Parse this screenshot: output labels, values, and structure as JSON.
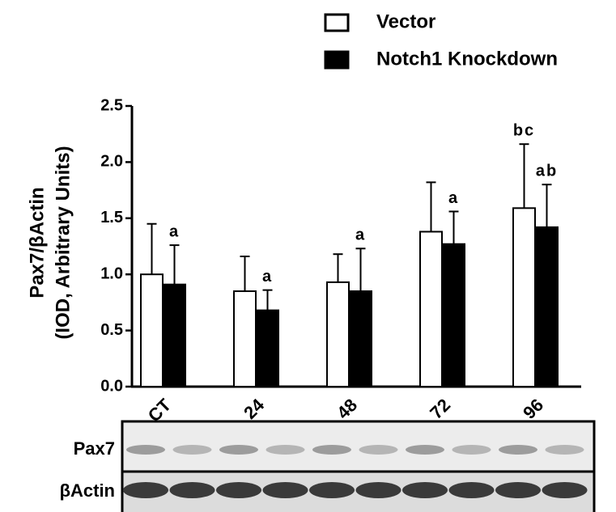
{
  "chart_data": {
    "type": "bar",
    "y_label": [
      "Pax7/βActin",
      "(IOD, Arbitrary Units)"
    ],
    "categories": [
      "CT",
      "24",
      "48",
      "72",
      "96"
    ],
    "series": [
      {
        "name": "Vector",
        "color": "#ffffff",
        "values": [
          1.0,
          0.85,
          0.93,
          1.38,
          1.59
        ],
        "errors": [
          0.45,
          0.31,
          0.25,
          0.44,
          0.57
        ],
        "letters": [
          null,
          null,
          null,
          null,
          "bc"
        ]
      },
      {
        "name": "Notch1 Knockdown",
        "color": "#000000",
        "values": [
          0.91,
          0.68,
          0.85,
          1.27,
          1.42
        ],
        "errors": [
          0.35,
          0.18,
          0.38,
          0.29,
          0.38
        ],
        "letters": [
          "a",
          "a",
          "a",
          "a",
          "ab"
        ]
      }
    ],
    "ylim": [
      0,
      2.5
    ],
    "yticks": [
      {
        "value": 0,
        "label": "0.0"
      },
      {
        "value": 0.5,
        "label": "0.5"
      },
      {
        "value": 1,
        "label": "1.0"
      },
      {
        "value": 1.5,
        "label": "1.5"
      },
      {
        "value": 2,
        "label": "2.0"
      },
      {
        "value": 2.5,
        "label": "2.5"
      }
    ],
    "legend": "top-right"
  },
  "blot": {
    "rows": [
      "Pax7",
      "βActin"
    ]
  }
}
